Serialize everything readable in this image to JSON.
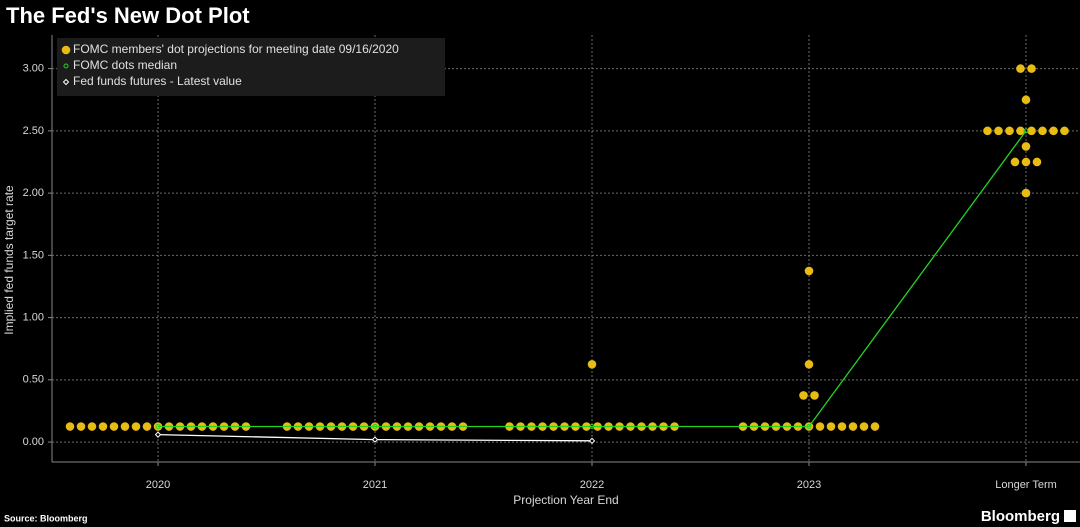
{
  "chart_data": {
    "type": "dot-plot",
    "title": "The Fed's New Dot Plot",
    "y_label": "Implied fed funds target rate",
    "x_label": "Projection Year End",
    "source": "Source: Bloomberg",
    "brand": "Bloomberg",
    "categories": [
      "2020",
      "2021",
      "2022",
      "2023",
      "Longer Term"
    ],
    "series": [
      {
        "name": "FOMC members' dot projections for meeting date 09/16/2020",
        "color": "#e8bc12",
        "values": [
          [
            0.125,
            0.125,
            0.125,
            0.125,
            0.125,
            0.125,
            0.125,
            0.125,
            0.125,
            0.125,
            0.125,
            0.125,
            0.125,
            0.125,
            0.125,
            0.125,
            0.125
          ],
          [
            0.125,
            0.125,
            0.125,
            0.125,
            0.125,
            0.125,
            0.125,
            0.125,
            0.125,
            0.125,
            0.125,
            0.125,
            0.125,
            0.125,
            0.125,
            0.125,
            0.125
          ],
          [
            0.125,
            0.125,
            0.125,
            0.125,
            0.125,
            0.125,
            0.125,
            0.125,
            0.125,
            0.125,
            0.125,
            0.125,
            0.125,
            0.125,
            0.125,
            0.125,
            0.625
          ],
          [
            0.125,
            0.125,
            0.125,
            0.125,
            0.125,
            0.125,
            0.125,
            0.125,
            0.125,
            0.125,
            0.125,
            0.125,
            0.125,
            0.375,
            0.375,
            0.625,
            1.375
          ],
          [
            2.0,
            2.25,
            2.25,
            2.25,
            2.375,
            2.5,
            2.5,
            2.5,
            2.5,
            2.5,
            2.5,
            2.5,
            2.5,
            2.75,
            3.0,
            3.0
          ]
        ]
      },
      {
        "name": "FOMC dots median",
        "color": "#22d322",
        "values": [
          0.125,
          0.125,
          0.125,
          0.125,
          2.5
        ]
      },
      {
        "name": "Fed funds futures - Latest value",
        "color": "#ffffff",
        "values": [
          0.06,
          0.02,
          0.01,
          null,
          null
        ]
      }
    ],
    "ylim": [
      -0.16,
      3.27
    ],
    "yticks": [
      {
        "value": 0,
        "label": "0.00"
      },
      {
        "value": 0.5,
        "label": "0.50"
      },
      {
        "value": 1,
        "label": "1.00"
      },
      {
        "value": 1.5,
        "label": "1.50"
      },
      {
        "value": 2,
        "label": "2.00"
      },
      {
        "value": 2.5,
        "label": "2.50"
      },
      {
        "value": 3,
        "label": "3.00"
      }
    ],
    "grid": true
  }
}
